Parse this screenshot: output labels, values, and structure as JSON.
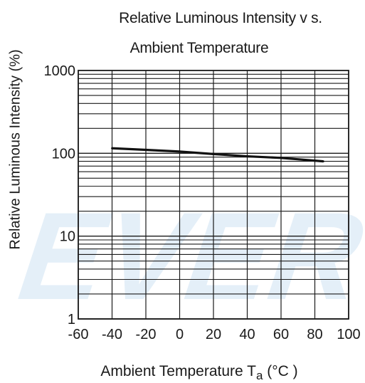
{
  "chart_data": {
    "type": "line",
    "title_line1": "Relative Luminous Intensity v s.",
    "title_line2": "Ambient Temperature",
    "xlabel_main": "Ambient Temperature T",
    "xlabel_sub": "a",
    "xlabel_unit": " (°C )",
    "ylabel": "Relative Luminous Intensity  (%)",
    "x_ticks": [
      -60,
      -40,
      -20,
      0,
      20,
      40,
      60,
      80,
      100
    ],
    "x_tick_labels": [
      "-60",
      "-40",
      "-20",
      "0",
      "20",
      "40",
      "60",
      "80",
      "100"
    ],
    "y_ticks": [
      1,
      10,
      100,
      1000
    ],
    "y_tick_labels": [
      "1",
      "10",
      "100",
      "1000"
    ],
    "xlim": [
      -60,
      100
    ],
    "ylim": [
      1,
      1000
    ],
    "y_scale": "log",
    "grid": true,
    "watermark": "EVER",
    "series": [
      {
        "x": [
          -40,
          -20,
          0,
          20,
          40,
          60,
          85
        ],
        "y": [
          115,
          110,
          105,
          98,
          92,
          88,
          80
        ]
      }
    ]
  }
}
